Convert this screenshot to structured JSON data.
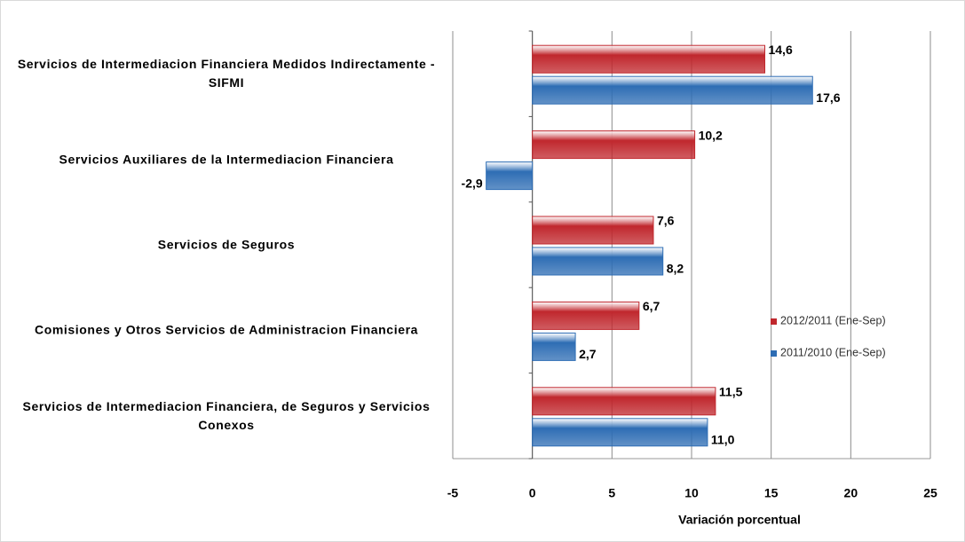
{
  "chart_data": {
    "type": "barh",
    "categories": [
      "Servicios de Intermediacion Financiera Medidos Indirectamente - SIFMI",
      "Servicios Auxiliares de la Intermediacion Financiera",
      "Servicios de Seguros",
      "Comisiones y Otros Servicios de Administracion Financiera",
      "Servicios de Intermediacion Financiera, de Seguros y Servicios Conexos"
    ],
    "series": [
      {
        "name": "2012/2011 (Ene-Sep)",
        "color": "#c0272d",
        "values": [
          14.6,
          10.2,
          7.6,
          6.7,
          11.5
        ],
        "value_labels": [
          "14,6",
          "10,2",
          "7,6",
          "6,7",
          "11,5"
        ]
      },
      {
        "name": "2011/2010 (Ene-Sep)",
        "color": "#2e6db4",
        "values": [
          17.6,
          -2.9,
          8.2,
          2.7,
          11.0
        ],
        "value_labels": [
          "17,6",
          "-2,9",
          "8,2",
          "2,7",
          "11,0"
        ]
      }
    ],
    "xlabel": "Variación porcentual",
    "xlim": [
      -5,
      25
    ],
    "xticks": [
      -5,
      0,
      5,
      10,
      15,
      20,
      25
    ],
    "grid": true
  }
}
